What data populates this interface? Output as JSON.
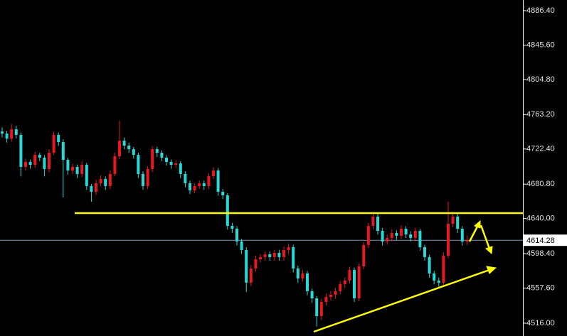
{
  "chart_data": {
    "type": "candlestick",
    "up_color": "#e8181d",
    "down_color": "#27d9d9",
    "axis_color": "#ffffff",
    "price_line_color": "#7d96b8",
    "ylim": [
      4500.8,
      4899.0
    ],
    "yticks": [
      {
        "value": 4886.4,
        "label": "4886.40"
      },
      {
        "value": 4845.6,
        "label": "4845.60"
      },
      {
        "value": 4804.8,
        "label": "4804.80"
      },
      {
        "value": 4763.2,
        "label": "4763.20"
      },
      {
        "value": 4722.4,
        "label": "4722.40"
      },
      {
        "value": 4680.8,
        "label": "4680.80"
      },
      {
        "value": 4640,
        "label": "4640.00"
      },
      {
        "value": 4598.4,
        "label": "4598.40"
      },
      {
        "value": 4557.6,
        "label": "4557.60"
      },
      {
        "value": 4516,
        "label": "4516.00"
      }
    ],
    "last_price": {
      "value": 4614.28,
      "label": "4614.28"
    },
    "open": [
      4743.2,
      4740.7,
      4734.8,
      4745.8,
      4739.1,
      4701.2,
      4707.1,
      4703.7,
      4715.5,
      4712.1,
      4698.7,
      4718.0,
      4739.1,
      4730.6,
      4709.6,
      4697.0,
      4701.2,
      4692.8,
      4703.7,
      4678.5,
      4671.7,
      4681.8,
      4686.9,
      4678.5,
      4692.8,
      4713.8,
      4732.3,
      4726.4,
      4722.2,
      4715.5,
      4692.8,
      4678.5,
      4698.7,
      4722.2,
      4718.0,
      4712.1,
      4707.1,
      4703.7,
      4705.4,
      4692.8,
      4681.8,
      4673.4,
      4678.5,
      4681.8,
      4678.5,
      4690.2,
      4697.0,
      4671.7,
      4667.5,
      4631.3,
      4627.9,
      4612.8,
      4602.7,
      4564.0,
      4580.8,
      4591.7,
      4594.3,
      4597.6,
      4594.3,
      4599.3,
      4594.3,
      4602.7,
      4606.1,
      4580.8,
      4569.0,
      4574.9,
      4553.9,
      4545.4,
      4524.4,
      4541.2,
      4547.1,
      4549.7,
      4553.9,
      4562.3,
      4566.5,
      4579.1,
      4545.4,
      4583.3,
      4608.6,
      4631.3,
      4642.3,
      4625.4,
      4612.8,
      4617.0,
      4622.9,
      4619.5,
      4627.9,
      4621.2,
      4617.0,
      4625.4,
      4606.1,
      4594.3,
      4574.9,
      4566.5,
      4564.0,
      4596.0,
      4633.8,
      4642.3,
      4627.9,
      4612.8
    ],
    "high": [
      4748,
      4744,
      4752,
      4750,
      4742,
      4711,
      4710,
      4719,
      4718,
      4715,
      4722,
      4743,
      4742,
      4734,
      4712,
      4705,
      4704,
      4708,
      4706,
      4681,
      4686,
      4691,
      4690,
      4697,
      4718,
      4756,
      4736,
      4730,
      4725,
      4718,
      4696,
      4702,
      4726,
      4725,
      4721,
      4715,
      4710,
      4709,
      4708,
      4696,
      4685,
      4682,
      4685,
      4685,
      4694,
      4701,
      4700,
      4675,
      4670,
      4635,
      4631,
      4616,
      4606,
      4585,
      4596,
      4598,
      4601,
      4601,
      4603,
      4603,
      4607,
      4610,
      4609,
      4584,
      4579,
      4578,
      4557,
      4548,
      4545,
      4551,
      4554,
      4558,
      4566,
      4570,
      4583,
      4582,
      4587,
      4612,
      4635,
      4648,
      4646,
      4629,
      4621,
      4627,
      4626,
      4632,
      4631,
      4625,
      4629,
      4628,
      4609,
      4597,
      4578,
      4570,
      4600,
      4660,
      4648,
      4646,
      4631,
      4620
    ],
    "low": [
      4736,
      4730,
      4731,
      4735,
      4690,
      4697,
      4699,
      4700,
      4708,
      4690,
      4695,
      4715,
      4726,
      4665,
      4692,
      4693,
      4688,
      4689,
      4674,
      4660,
      4668,
      4678,
      4674,
      4675,
      4690,
      4710,
      4722,
      4718,
      4711,
      4688,
      4674,
      4675,
      4695,
      4713,
      4708,
      4703,
      4699,
      4700,
      4688,
      4677,
      4669,
      4670,
      4675,
      4674,
      4675,
      4687,
      4667,
      4663,
      4627,
      4623,
      4608,
      4598,
      4553,
      4560,
      4577,
      4588,
      4590,
      4590,
      4590,
      4590,
      4590,
      4598,
      4576,
      4564,
      4565,
      4549,
      4540,
      4512,
      4520,
      4537,
      4543,
      4545,
      4550,
      4558,
      4563,
      4541,
      4542,
      4580,
      4605,
      4627,
      4621,
      4608,
      4609,
      4613,
      4615,
      4616,
      4617,
      4613,
      4613,
      4602,
      4590,
      4570,
      4562,
      4559,
      4560,
      4593,
      4630,
      4623,
      4608,
      4609
    ],
    "close": [
      4740.7,
      4734.8,
      4745.8,
      4739.1,
      4701.2,
      4707.1,
      4703.7,
      4715.5,
      4712.1,
      4698.7,
      4718.0,
      4739.1,
      4730.6,
      4709.6,
      4697.0,
      4701.2,
      4692.8,
      4703.7,
      4678.5,
      4671.7,
      4681.8,
      4686.9,
      4678.5,
      4692.8,
      4713.8,
      4732.3,
      4726.4,
      4722.2,
      4715.5,
      4692.8,
      4678.5,
      4698.7,
      4722.2,
      4718.0,
      4712.1,
      4707.1,
      4703.7,
      4705.4,
      4692.8,
      4681.8,
      4673.4,
      4678.5,
      4681.8,
      4678.5,
      4690.2,
      4697.0,
      4671.7,
      4667.5,
      4631.3,
      4627.9,
      4612.8,
      4602.7,
      4564.0,
      4580.8,
      4591.7,
      4594.3,
      4597.6,
      4594.3,
      4599.3,
      4594.3,
      4602.7,
      4606.1,
      4580.8,
      4569.0,
      4574.9,
      4553.9,
      4545.4,
      4524.4,
      4541.2,
      4547.1,
      4549.7,
      4553.9,
      4562.3,
      4566.5,
      4579.1,
      4545.4,
      4583.3,
      4608.6,
      4631.3,
      4642.3,
      4625.4,
      4612.8,
      4617.0,
      4622.9,
      4619.5,
      4627.9,
      4621.2,
      4617.0,
      4625.4,
      4606.1,
      4594.3,
      4574.9,
      4566.5,
      4564.0,
      4596.0,
      4633.8,
      4642.3,
      4627.9,
      4612.8,
      4614.3
    ]
  }
}
